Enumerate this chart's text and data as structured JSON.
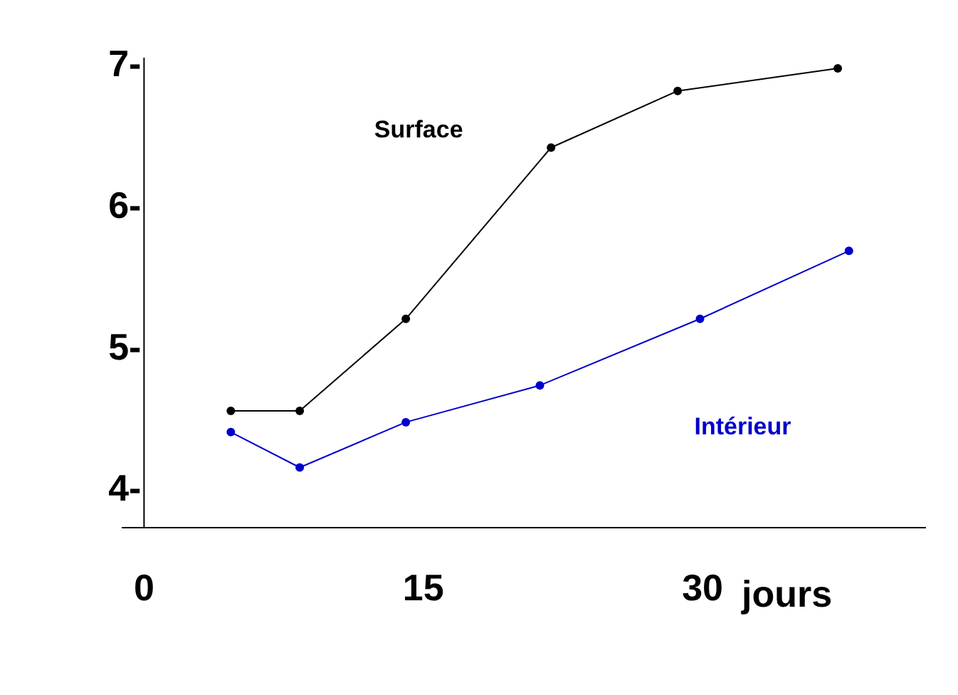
{
  "chart_data": {
    "type": "line",
    "x": [
      4.7,
      8.4,
      14.1,
      21.9,
      28.7,
      37.3
    ],
    "series": [
      {
        "name": "Surface",
        "color": "#000000",
        "values": [
          4.55,
          4.55,
          5.2,
          6.41,
          6.81,
          6.97
        ]
      },
      {
        "name": "Intérieur",
        "color": "#0000cc",
        "x": [
          4.7,
          8.4,
          14.1,
          21.3,
          29.9,
          37.9
        ],
        "values": [
          4.4,
          4.15,
          4.47,
          4.73,
          5.2,
          5.68
        ]
      }
    ],
    "xlabel": "jours",
    "xlim": [
      -1.2,
      42
    ],
    "ylim": [
      3.73,
      7.05
    ],
    "xticks": [
      0,
      15,
      30
    ],
    "yticks": [
      {
        "value": 4,
        "label": "4-"
      },
      {
        "value": 5,
        "label": "5-"
      },
      {
        "value": 6,
        "label": "6-"
      },
      {
        "value": 7,
        "label": "7-"
      }
    ],
    "grid": false,
    "marker": "circle",
    "line_style": "solid"
  }
}
